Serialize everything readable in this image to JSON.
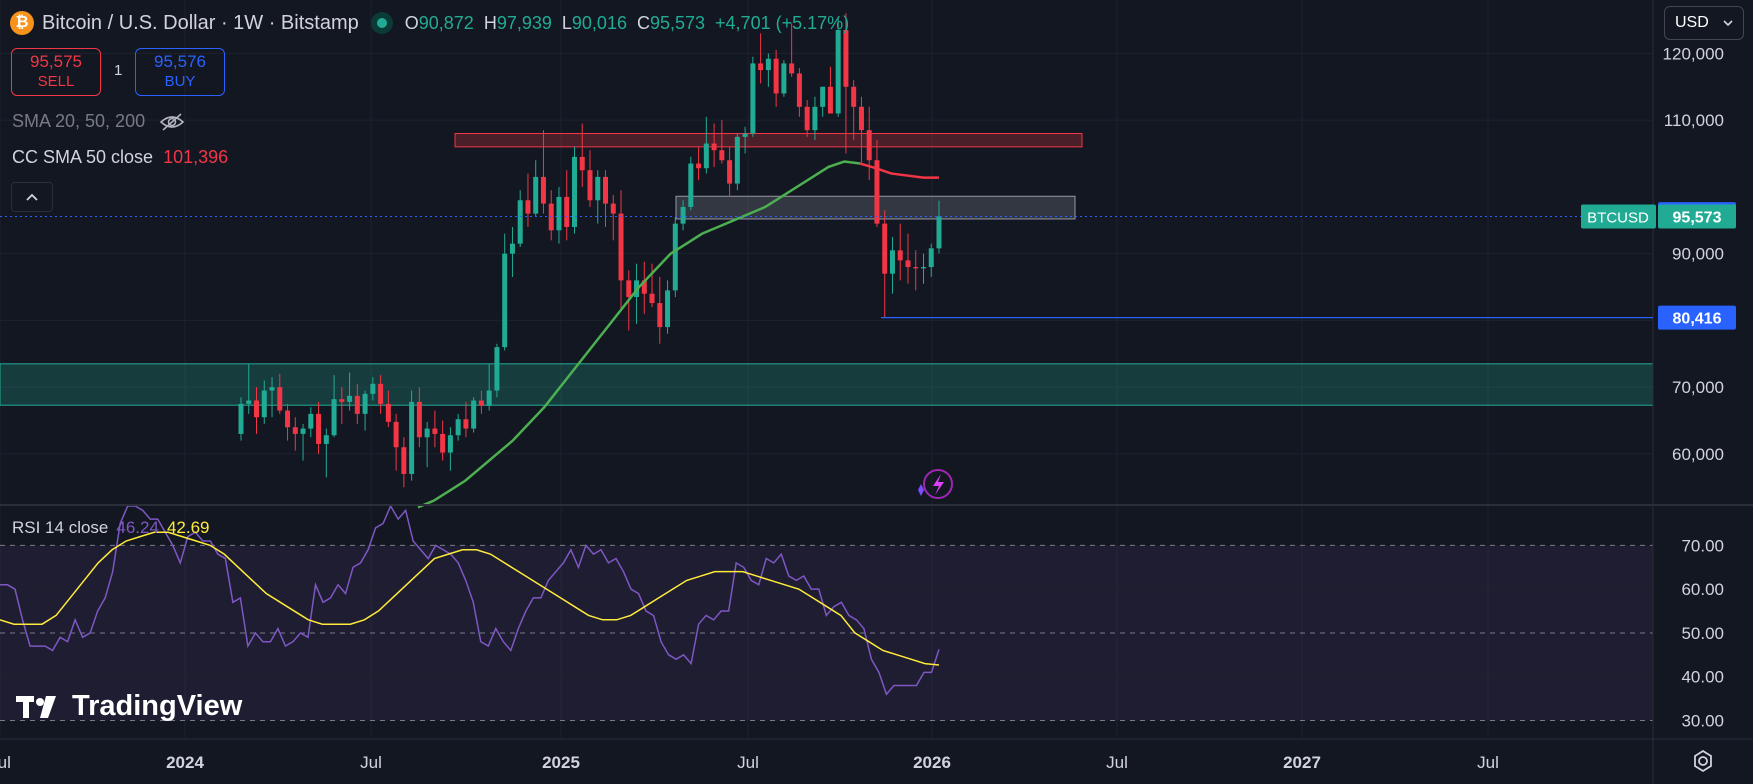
{
  "header": {
    "coin_glyph": "₿",
    "title": "Bitcoin / U.S. Dollar · 1W · Bitstamp",
    "ohlc": [
      {
        "k": "O",
        "v": "90,872"
      },
      {
        "k": "H",
        "v": "97,939"
      },
      {
        "k": "L",
        "v": "90,016"
      },
      {
        "k": "C",
        "v": "95,573"
      }
    ],
    "change": "+4,701 (+5.17%)"
  },
  "trade": {
    "sell_price": "95,575",
    "sell_label": "SELL",
    "quantity": "1",
    "buy_price": "95,576",
    "buy_label": "BUY"
  },
  "indicators": {
    "sma_label": "SMA 20, 50, 200",
    "cc_sma_label": "CC SMA 50 close",
    "cc_sma_value": "101,396",
    "rsi_label": "RSI 14 close",
    "rsi_value": "46.24",
    "rsi_ma_value": "42.69"
  },
  "currency_select": "USD",
  "brand": "TradingView",
  "colors": {
    "up": "#22ab94",
    "down": "#f23645",
    "sma": "#4caf50",
    "rsi": "#7e57c2",
    "rsi_ma": "#ffeb3b",
    "accent": "#2962ff"
  },
  "chart_data": [
    {
      "type": "candlestick",
      "title": "Bitcoin / U.S. Dollar · 1W · Bitstamp",
      "x_axis_ticks": [
        "Jul",
        "2024",
        "Jul",
        "2025",
        "Jul",
        "2026",
        "Jul",
        "2027",
        "Jul"
      ],
      "y_axis_ticks": [
        "60,000",
        "70,000",
        "80,000",
        "90,000",
        "110,000",
        "120,000"
      ],
      "ylim": [
        52500,
        128000
      ],
      "price_labels": [
        {
          "label": "",
          "value": "95,916",
          "num": 95916
        },
        {
          "label": "BTCUSD",
          "value": "95,573",
          "num": 95573
        },
        {
          "label": "",
          "value": "80,416",
          "num": 80416
        }
      ],
      "zones": [
        {
          "name": "resistance",
          "from": 106000,
          "to": 108000,
          "color": "#f23645"
        },
        {
          "name": "grey-range",
          "from": 95200,
          "to": 98600,
          "color": "#9598a1"
        },
        {
          "name": "support",
          "from": 67300,
          "to": 73500,
          "color": "#22ab94"
        }
      ],
      "ohlc_series_weekly_2024_03_to_2026_01": [
        [
          63000,
          68500,
          62000,
          67500
        ],
        [
          67500,
          73500,
          66000,
          68000
        ],
        [
          68000,
          70000,
          63000,
          65500
        ],
        [
          65500,
          71000,
          64500,
          69500
        ],
        [
          69500,
          71500,
          65500,
          70000
        ],
        [
          70000,
          72000,
          66000,
          66500
        ],
        [
          66500,
          67500,
          62000,
          64000
        ],
        [
          64000,
          65500,
          60500,
          63000
        ],
        [
          63000,
          64500,
          59000,
          63800
        ],
        [
          63800,
          67000,
          62500,
          66000
        ],
        [
          66000,
          67800,
          60000,
          61500
        ],
        [
          61500,
          63800,
          56500,
          62800
        ],
        [
          62800,
          71800,
          62500,
          68200
        ],
        [
          68200,
          70000,
          64500,
          67800
        ],
        [
          67800,
          72200,
          66500,
          68700
        ],
        [
          68700,
          70500,
          64500,
          66000
        ],
        [
          66000,
          69500,
          63500,
          69000
        ],
        [
          69000,
          71500,
          68000,
          70500
        ],
        [
          70500,
          71800,
          66000,
          67500
        ],
        [
          67500,
          69500,
          64000,
          64800
        ],
        [
          64800,
          66000,
          57500,
          61000
        ],
        [
          61000,
          62500,
          55000,
          57000
        ],
        [
          57000,
          69500,
          56000,
          67800
        ],
        [
          67800,
          70000,
          61000,
          62500
        ],
        [
          62500,
          64800,
          58000,
          63800
        ],
        [
          63800,
          66500,
          61000,
          63000
        ],
        [
          63000,
          65000,
          59000,
          60200
        ],
        [
          60200,
          64000,
          57500,
          62800
        ],
        [
          62800,
          66000,
          62000,
          65200
        ],
        [
          65200,
          67800,
          62500,
          63800
        ],
        [
          63800,
          68500,
          63200,
          68000
        ],
        [
          68000,
          69500,
          66000,
          67200
        ],
        [
          67200,
          73500,
          66500,
          69500
        ],
        [
          69500,
          76500,
          68500,
          76000
        ],
        [
          76000,
          93000,
          75500,
          90000
        ],
        [
          90000,
          94000,
          86500,
          91500
        ],
        [
          91500,
          99500,
          91000,
          98000
        ],
        [
          98000,
          102000,
          94000,
          96000
        ],
        [
          96000,
          104000,
          95500,
          101500
        ],
        [
          101500,
          108500,
          96000,
          97500
        ],
        [
          97500,
          99500,
          92000,
          93500
        ],
        [
          93500,
          100000,
          91500,
          98500
        ],
        [
          98500,
          102500,
          92000,
          94000
        ],
        [
          94000,
          106000,
          93000,
          104500
        ],
        [
          104500,
          109500,
          100000,
          102500
        ],
        [
          102500,
          105500,
          97000,
          98000
        ],
        [
          98000,
          102500,
          94500,
          101500
        ],
        [
          101500,
          102500,
          94000,
          97500
        ],
        [
          97500,
          98800,
          92000,
          96000
        ],
        [
          96000,
          99500,
          81500,
          86000
        ],
        [
          86000,
          87500,
          78500,
          83500
        ],
        [
          83500,
          88500,
          79500,
          86000
        ],
        [
          86000,
          88800,
          81000,
          84000
        ],
        [
          84000,
          88500,
          82000,
          82600
        ],
        [
          82600,
          86500,
          76500,
          79000
        ],
        [
          79000,
          86000,
          78000,
          84500
        ],
        [
          84500,
          95500,
          83500,
          94500
        ],
        [
          94500,
          98000,
          93500,
          97000
        ],
        [
          97000,
          104500,
          96500,
          103500
        ],
        [
          103500,
          106000,
          101000,
          102800
        ],
        [
          102800,
          110500,
          102000,
          106500
        ],
        [
          106500,
          109500,
          103000,
          105500
        ],
        [
          105500,
          110000,
          103500,
          104000
        ],
        [
          104000,
          106000,
          98500,
          100500
        ],
        [
          100500,
          108000,
          99500,
          107500
        ],
        [
          107500,
          109000,
          105000,
          108000
        ],
        [
          108000,
          119500,
          107500,
          118500
        ],
        [
          118500,
          123000,
          115500,
          117500
        ],
        [
          117500,
          120000,
          115000,
          119200
        ],
        [
          119200,
          120500,
          112000,
          114000
        ],
        [
          114000,
          119000,
          113500,
          118500
        ],
        [
          118500,
          124500,
          116500,
          117000
        ],
        [
          117000,
          117800,
          110500,
          112000
        ],
        [
          112000,
          113000,
          107500,
          108500
        ],
        [
          108500,
          113500,
          107000,
          112000
        ],
        [
          112000,
          115000,
          110500,
          115000
        ],
        [
          115000,
          118000,
          112000,
          111000
        ],
        [
          111000,
          125500,
          110500,
          123500
        ],
        [
          123500,
          126000,
          105000,
          115000
        ],
        [
          115000,
          116000,
          107000,
          112000
        ],
        [
          112000,
          113500,
          103500,
          108500
        ],
        [
          108500,
          112000,
          101000,
          104000
        ],
        [
          104000,
          107000,
          94000,
          94500
        ],
        [
          94500,
          96500,
          80416,
          87000
        ],
        [
          87000,
          92500,
          84000,
          90500
        ],
        [
          90500,
          94500,
          86000,
          89000
        ],
        [
          89000,
          93000,
          85500,
          88000
        ],
        [
          88000,
          90500,
          84500,
          87800
        ],
        [
          87800,
          90000,
          85500,
          88000
        ],
        [
          88000,
          91500,
          86500,
          90800
        ],
        [
          90800,
          97939,
          90016,
          95573
        ]
      ],
      "sma50_series": [
        52000,
        53000,
        54500,
        56000,
        58000,
        60000,
        62000,
        64500,
        67000,
        70000,
        73000,
        76000,
        79000,
        82000,
        85000,
        87500,
        90000,
        91500,
        93000,
        94000,
        95000,
        96000,
        97000,
        98500,
        100000,
        101500,
        103000,
        103800,
        103500,
        102800,
        102000,
        101700,
        101400,
        101396
      ],
      "sma50_note": ""
    },
    {
      "type": "line",
      "title": "RSI 14 close",
      "y_axis_ticks": [
        "30.00",
        "40.00",
        "50.00",
        "60.00",
        "70.00"
      ],
      "ylim": [
        26,
        79
      ],
      "series": [
        {
          "name": "",
          "values": [
            61,
            61,
            60,
            53,
            47,
            47,
            47,
            46,
            49,
            48,
            53,
            49,
            50,
            55,
            58,
            64,
            75,
            80,
            81,
            78,
            76,
            76,
            73,
            70,
            66,
            72,
            73,
            71,
            71,
            68,
            67,
            57,
            58,
            47,
            50,
            48,
            48,
            51,
            47,
            48,
            50,
            49,
            61,
            57,
            58,
            61,
            59,
            65,
            66,
            69,
            74,
            75,
            80,
            76,
            78,
            71,
            69,
            67,
            70,
            69,
            68,
            66,
            62,
            57,
            48,
            47,
            51,
            48,
            46,
            51,
            55,
            58,
            58,
            62,
            64,
            66,
            69,
            65,
            70,
            68,
            69,
            66,
            67,
            64,
            60,
            59,
            55,
            54,
            48,
            45,
            44,
            45,
            43,
            52,
            54,
            53,
            55,
            55,
            66,
            65,
            62,
            61,
            67,
            66,
            68,
            63,
            62,
            63,
            60,
            60,
            54,
            56,
            57,
            54,
            53,
            51,
            44,
            41,
            36,
            38,
            38,
            38,
            38,
            41,
            41,
            46.24
          ]
        },
        {
          "name": "",
          "values": [
            53,
            52,
            52,
            52,
            54,
            58,
            62,
            66,
            69,
            71,
            72,
            73,
            73,
            72,
            71,
            70,
            68,
            65,
            62,
            59,
            57,
            55,
            53,
            52,
            52,
            52,
            53,
            55,
            58,
            61,
            64,
            67,
            68,
            69,
            69,
            68,
            66,
            64,
            62,
            60,
            58,
            56,
            54,
            53,
            53,
            54,
            56,
            58,
            60,
            62,
            63,
            64,
            64,
            64,
            63,
            62,
            61,
            60,
            58,
            56,
            54,
            50,
            48,
            46,
            45,
            44,
            43,
            42.69
          ]
        }
      ]
    }
  ]
}
